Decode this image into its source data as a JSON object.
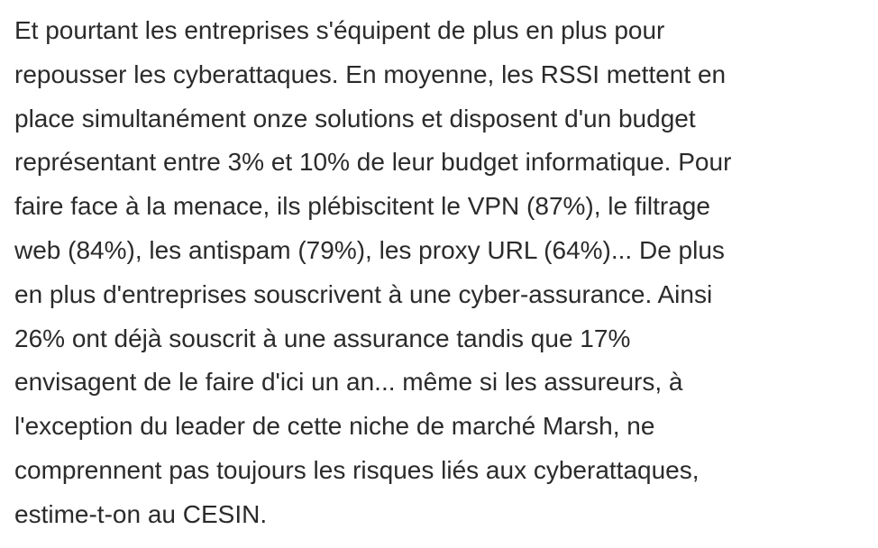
{
  "article": {
    "paragraph_lines": [
      "Et pourtant les entreprises s'équipent de plus en plus pour",
      "repousser les cyberattaques. En moyenne, les RSSI mettent en",
      "place simultanément onze solutions et disposent d'un budget",
      "représentant entre 3% et 10% de leur budget informatique. Pour",
      "faire face à la menace, ils plébiscitent le VPN (87%), le filtrage",
      "web (84%), les antispam (79%), les proxy URL (64%)... De plus",
      "en plus d'entreprises souscrivent à une cyber-assurance. Ainsi",
      "26% ont déjà souscrit à une assurance tandis que 17%",
      "envisagent de le faire d'ici un an... même si les assureurs, à",
      "l'exception du leader de cette niche de marché Marsh, ne",
      "comprennent pas toujours les risques liés aux cyberattaques,",
      "estime-t-on au CESIN."
    ]
  }
}
